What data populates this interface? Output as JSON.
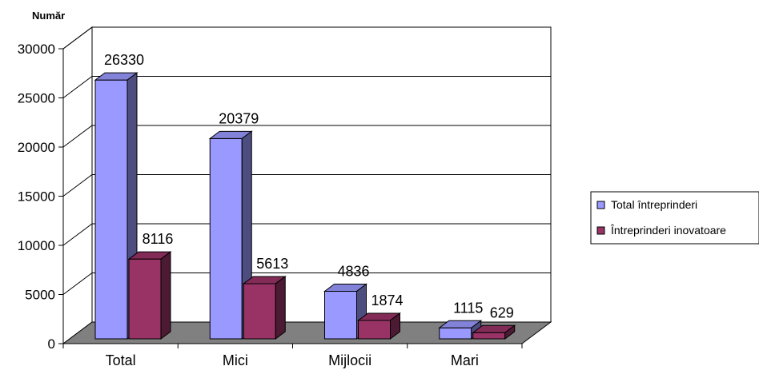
{
  "chart_data": {
    "type": "bar",
    "ylabel": "Număr",
    "categories": [
      "Total",
      "Mici",
      "Mijlocii",
      "Mari"
    ],
    "series": [
      {
        "name": "Total întreprinderi",
        "values": [
          26330,
          20379,
          4836,
          1115
        ],
        "color": "#9999ff"
      },
      {
        "name": "Întreprinderi inovatoare",
        "values": [
          8116,
          5613,
          1874,
          629
        ],
        "color": "#993366"
      }
    ],
    "ylim": [
      0,
      30000
    ],
    "yticks": [
      0,
      5000,
      10000,
      15000,
      20000,
      25000,
      30000
    ],
    "grid": true,
    "legend_position": "right",
    "style": "3d-clustered-column"
  }
}
